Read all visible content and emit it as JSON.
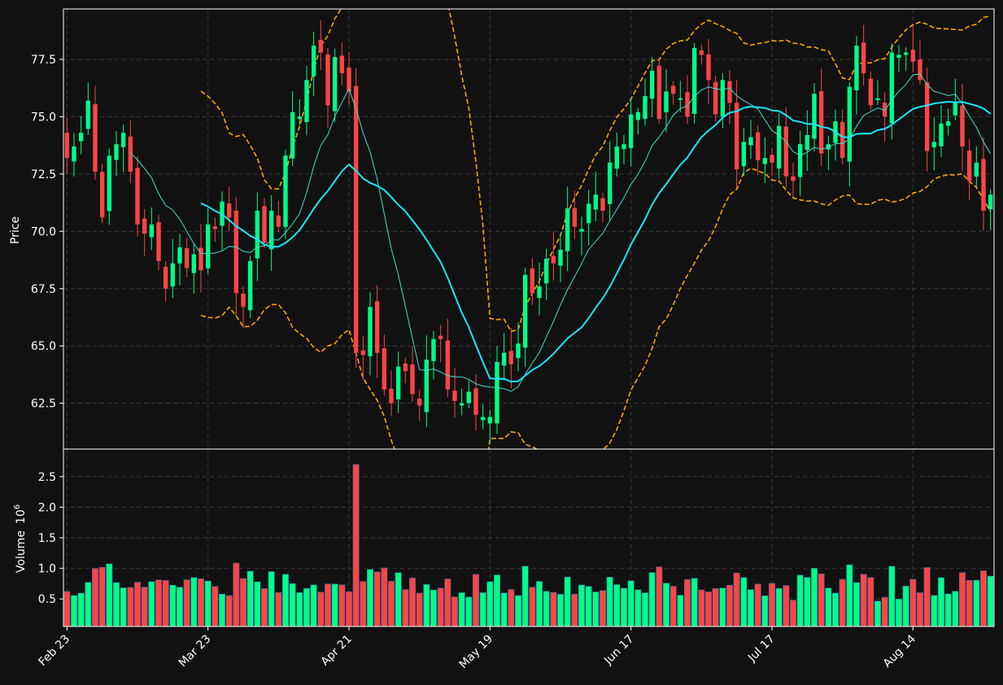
{
  "theme": {
    "background": "#111111",
    "up_color": "#00ff88",
    "down_color": "#ff4444",
    "ma_fast_color": "#3ee0d0",
    "ma_slow_color": "#19e6ff",
    "band_color": "#ffa500",
    "grid_color": "#3a3a3a",
    "axis_color": "#ffffff"
  },
  "chart_data": {
    "type": "candlestick",
    "title": "",
    "price_panel": {
      "ylabel": "Price",
      "ylim": [
        60.5,
        79.7
      ],
      "yticks": [
        "62.5",
        "65.0",
        "67.5",
        "70.0",
        "72.5",
        "75.0",
        "77.5"
      ]
    },
    "volume_panel": {
      "ylabel": "Volume",
      "ylabel_exponent": "10",
      "ylabel_exponent_power": "6",
      "ylim": [
        0.05,
        2.95
      ],
      "yticks": [
        "0.5",
        "1.0",
        "1.5",
        "2.0",
        "2.5"
      ]
    },
    "xticks": [
      {
        "index": 0,
        "label": "Feb 23"
      },
      {
        "index": 20,
        "label": "Mar 23"
      },
      {
        "index": 40,
        "label": "Apr 21"
      },
      {
        "index": 60,
        "label": "May 19"
      },
      {
        "index": 80,
        "label": "Jun 17"
      },
      {
        "index": 100,
        "label": "Jul 17"
      },
      {
        "index": 120,
        "label": "Aug 14"
      }
    ],
    "closes": [
      73.2,
      73.7,
      74.3,
      75.7,
      72.6,
      70.6,
      73.3,
      73.8,
      74.3,
      72.6,
      70.3,
      69.9,
      70.3,
      68.7,
      67.5,
      68.6,
      69.3,
      68.4,
      69.0,
      68.3,
      70.3,
      70.1,
      71.3,
      70.6,
      67.3,
      66.7,
      68.7,
      70.9,
      69.5,
      70.9,
      70.2,
      73.3,
      75.2,
      75.0,
      76.6,
      78.1,
      77.8,
      75.5,
      77.6,
      76.9,
      76.1,
      64.7,
      64.6,
      66.7,
      64.7,
      63.1,
      62.5,
      64.1,
      63.9,
      62.9,
      62.4,
      64.4,
      65.3,
      65.3,
      63.1,
      62.6,
      62.5,
      63.0,
      62.0,
      61.9,
      61.9,
      64.3,
      64.7,
      64.2,
      65.1,
      68.1,
      67.3,
      67.6,
      68.8,
      68.6,
      69.2,
      71.0,
      70.2,
      70.1,
      71.2,
      71.6,
      70.9,
      73.0,
      73.7,
      73.8,
      75.1,
      75.2,
      75.9,
      77.0,
      74.9,
      76.1,
      76.0,
      75.8,
      75.0,
      78.0,
      77.7,
      76.6,
      75.1,
      76.6,
      75.6,
      72.7,
      73.9,
      74.1,
      73.1,
      73.2,
      73.0,
      74.6,
      72.4,
      72.2,
      73.8,
      74.2,
      76.0,
      73.4,
      73.8,
      74.8,
      73.2,
      76.3,
      78.1,
      76.9,
      75.5,
      75.8,
      75.0,
      77.8,
      77.7,
      77.8,
      77.4,
      76.6,
      73.5,
      73.9,
      74.7,
      74.8,
      75.6,
      73.7,
      72.2,
      73.0,
      70.9,
      71.6
    ]
  }
}
